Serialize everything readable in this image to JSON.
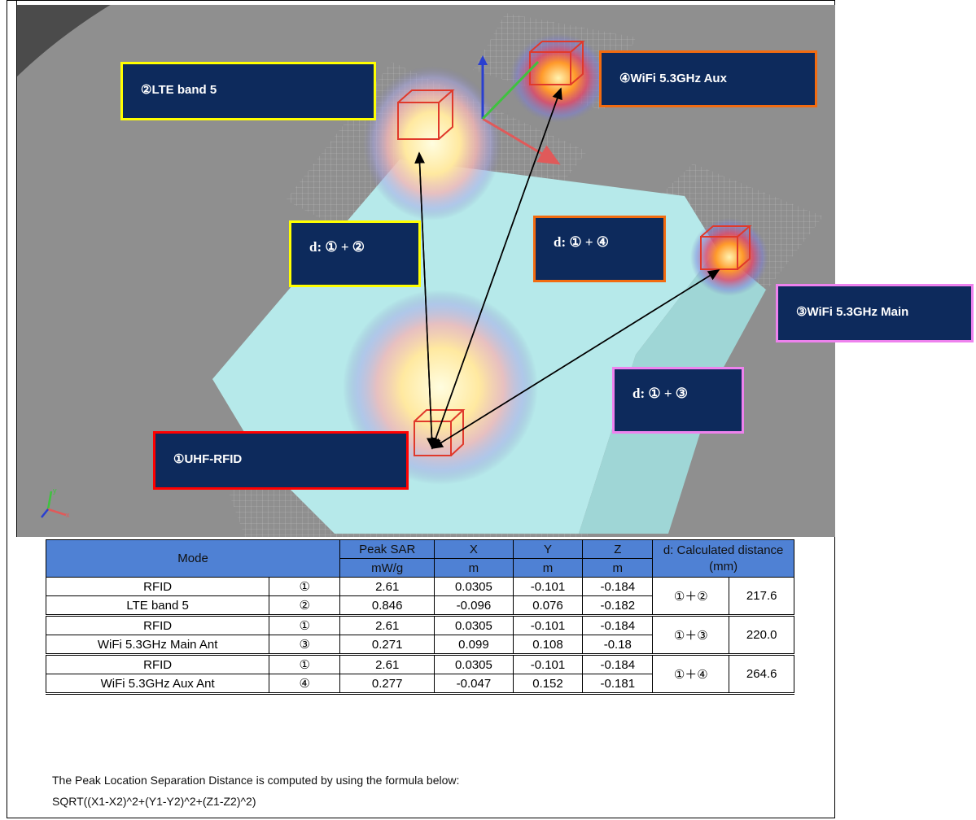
{
  "callouts": {
    "lte": "②LTE band 5",
    "wifi_aux": "④WiFi 5.3GHz Aux",
    "wifi_main": "③WiFi 5.3GHz Main",
    "rfid": "①UHF-RFID",
    "d12": "d: ① + ②",
    "d14": "d: ① + ④",
    "d13": "d: ① + ③"
  },
  "axis_triad": {
    "y": "y",
    "x": "x"
  },
  "colors": {
    "callout_bg": "#0d2a5c",
    "yellow_border": "#ffff00",
    "orange_border": "#f26b10",
    "pink_border": "#ee82ee",
    "red_border": "#ff0000",
    "header_bg": "#4f81d4"
  },
  "table": {
    "header": {
      "mode": "Mode",
      "peak_sar": "Peak SAR",
      "x": "X",
      "y": "Y",
      "z": "Z",
      "distance": "d: Calculated distance (mm)",
      "unit_sar": "mW/g",
      "unit_x": "m",
      "unit_y": "m",
      "unit_z": "m"
    },
    "groups": [
      {
        "pair": "①＋②",
        "distance": "217.6",
        "rows": [
          {
            "mode": "RFID",
            "id": "①",
            "sar": "2.61",
            "x": "0.0305",
            "y": "-0.101",
            "z": "-0.184"
          },
          {
            "mode": "LTE band 5",
            "id": "②",
            "sar": "0.846",
            "x": "-0.096",
            "y": "0.076",
            "z": "-0.182"
          }
        ]
      },
      {
        "pair": "①＋③",
        "distance": "220.0",
        "rows": [
          {
            "mode": "RFID",
            "id": "①",
            "sar": "2.61",
            "x": "0.0305",
            "y": "-0.101",
            "z": "-0.184"
          },
          {
            "mode": "WiFi 5.3GHz Main Ant",
            "id": "③",
            "sar": "0.271",
            "x": "0.099",
            "y": "0.108",
            "z": "-0.18"
          }
        ]
      },
      {
        "pair": "①＋④",
        "distance": "264.6",
        "rows": [
          {
            "mode": "RFID",
            "id": "①",
            "sar": "2.61",
            "x": "0.0305",
            "y": "-0.101",
            "z": "-0.184"
          },
          {
            "mode": "WiFi 5.3GHz Aux Ant",
            "id": "④",
            "sar": "0.277",
            "x": "-0.047",
            "y": "0.152",
            "z": "-0.181"
          }
        ]
      }
    ]
  },
  "notes": {
    "line1": "The Peak Location Separation Distance is computed by using the formula below:",
    "line2": "SQRT((X1-X2)^2+(Y1-Y2)^2+(Z1-Z2)^2)"
  }
}
